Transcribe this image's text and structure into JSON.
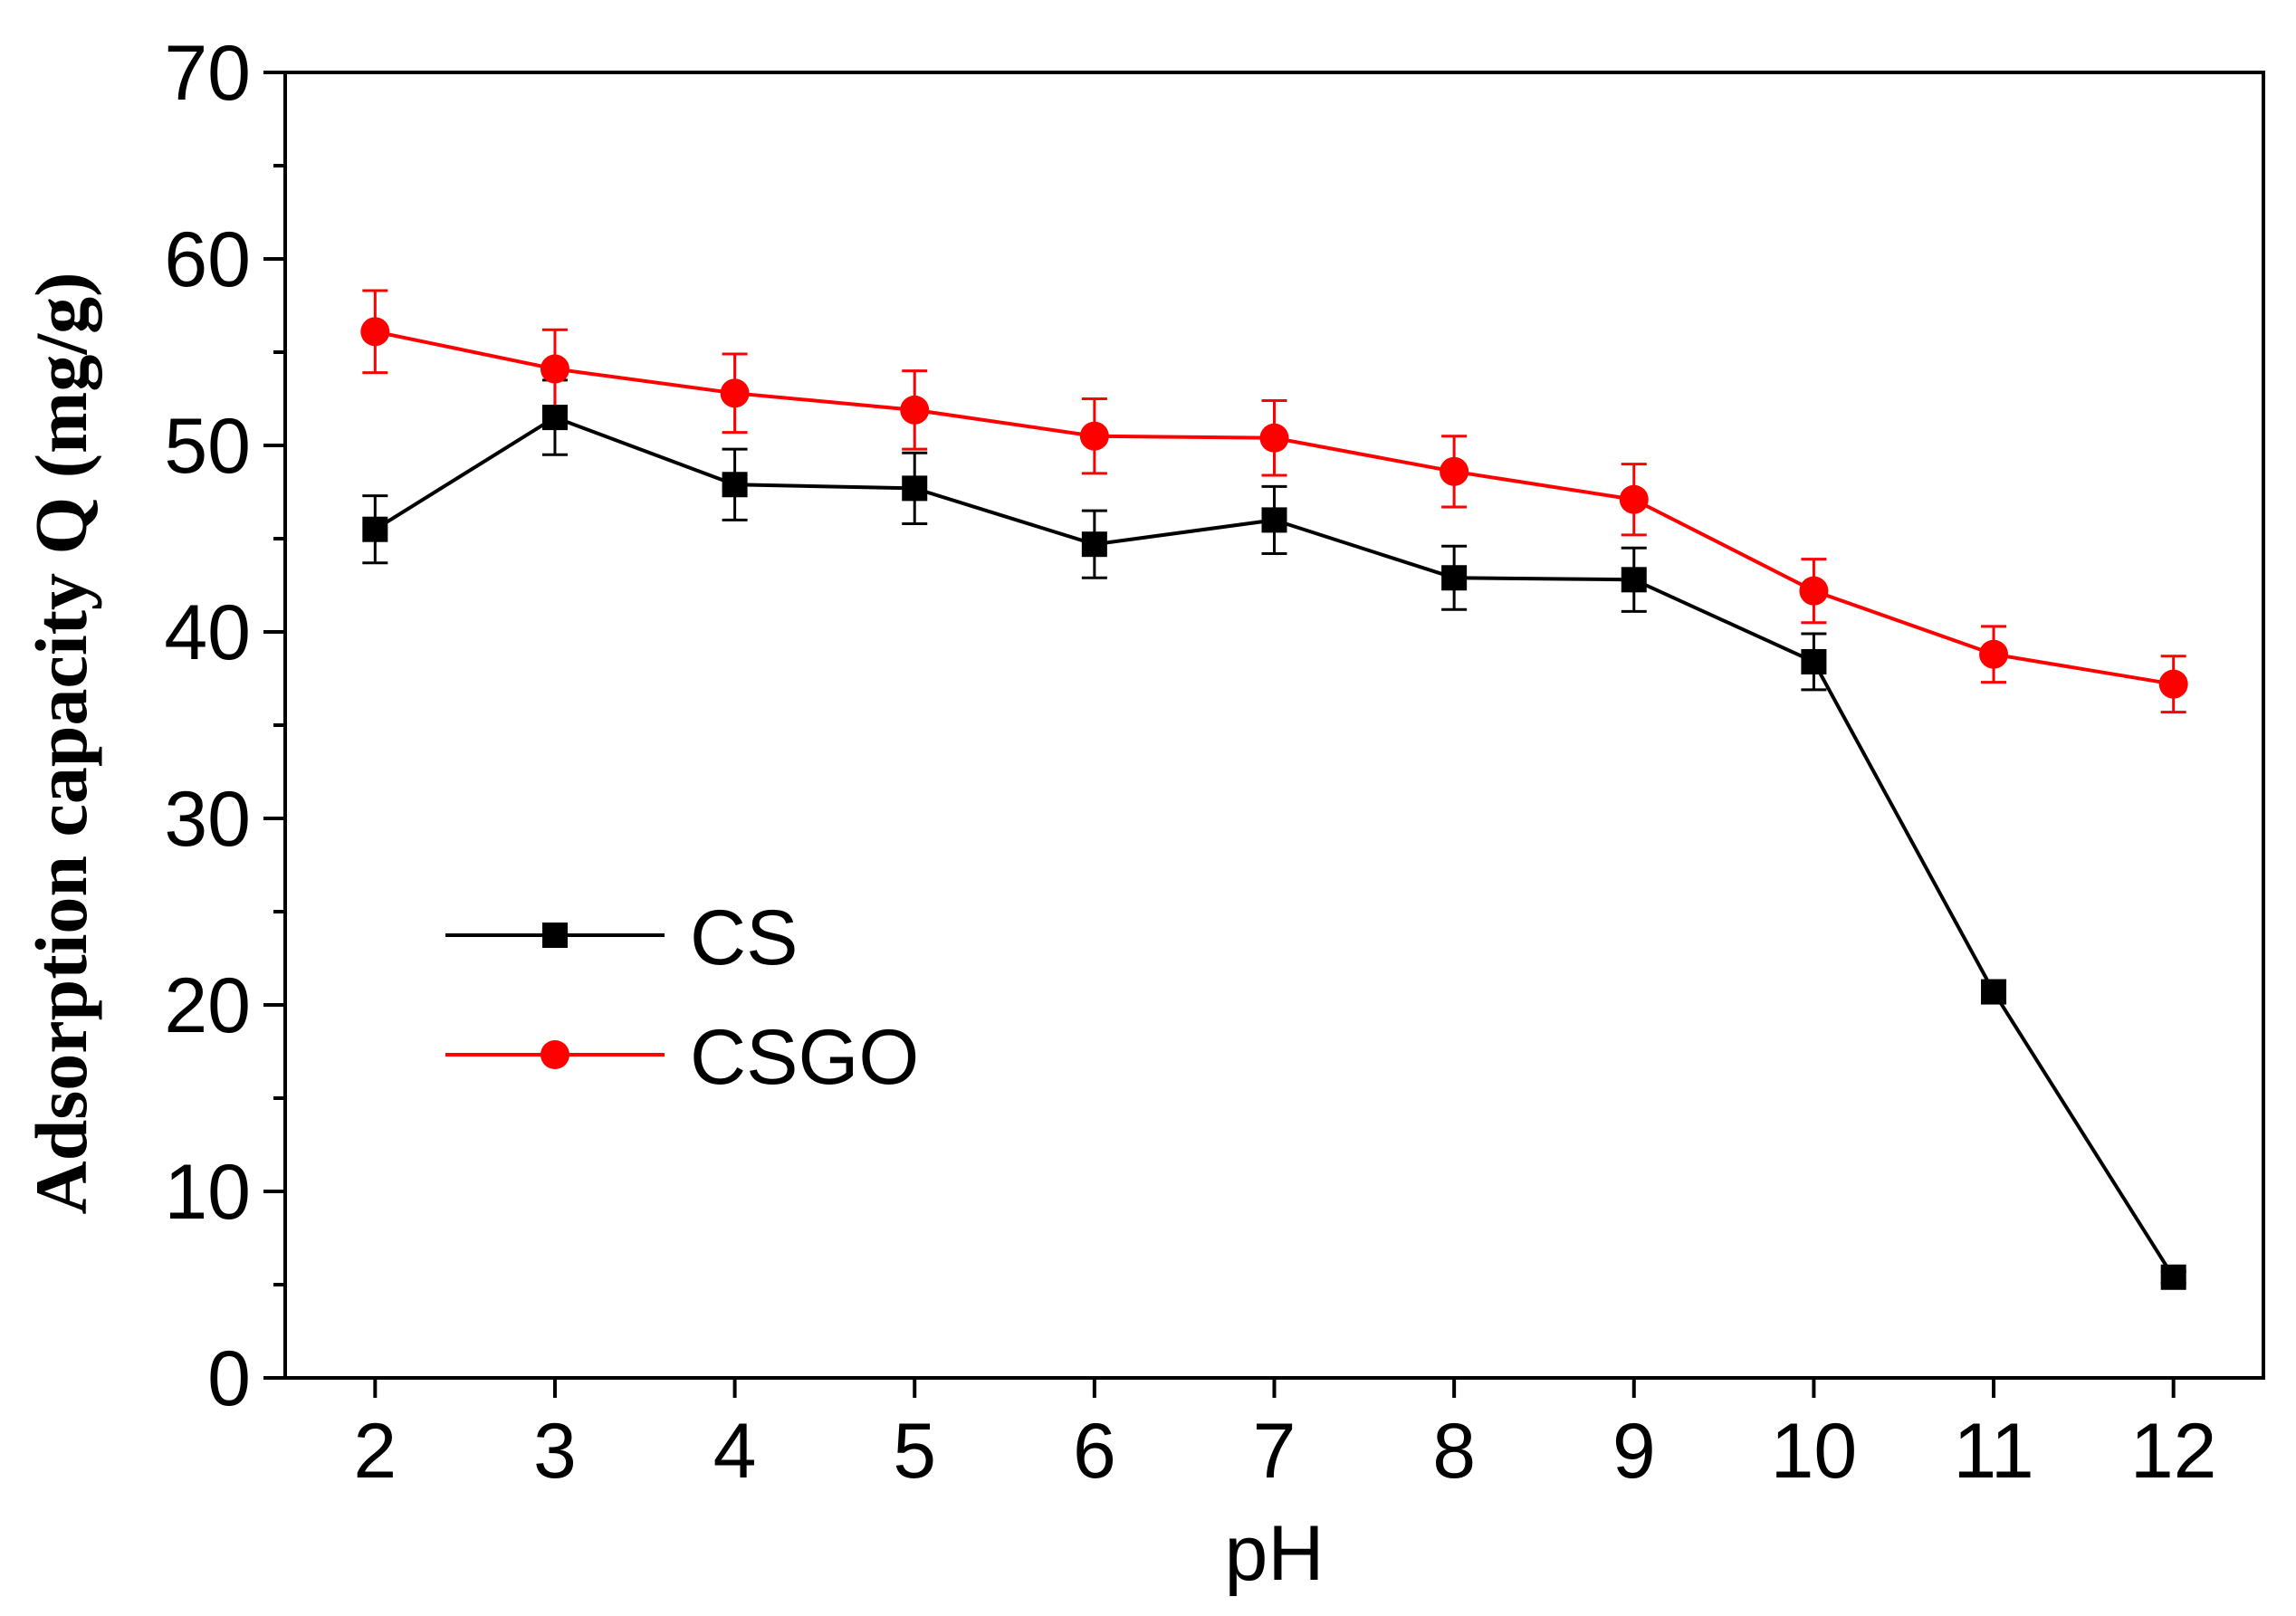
{
  "chart_data": {
    "type": "line",
    "title": "",
    "xlabel": "pH",
    "ylabel": "Adsorption capacity Q (mg/g)",
    "x": [
      2,
      3,
      4,
      5,
      6,
      7,
      8,
      9,
      10,
      11,
      12
    ],
    "xlim": [
      1.5,
      12.5
    ],
    "ylim": [
      0,
      70
    ],
    "xticks": [
      "2",
      "3",
      "4",
      "5",
      "6",
      "7",
      "8",
      "9",
      "10",
      "11",
      "12"
    ],
    "yticks": [
      "0",
      "10",
      "20",
      "30",
      "40",
      "50",
      "60",
      "70"
    ],
    "grid": false,
    "legend_position": "left-bottom",
    "series": [
      {
        "name": "CS",
        "color": "#000000",
        "marker": "square",
        "values": [
          45.5,
          51.5,
          47.9,
          47.7,
          44.7,
          46.0,
          42.9,
          42.8,
          38.4,
          20.7,
          5.4
        ],
        "errors": [
          1.8,
          2.0,
          1.9,
          1.9,
          1.8,
          1.8,
          1.7,
          1.7,
          1.5,
          0.6,
          0.3
        ]
      },
      {
        "name": "CSGO",
        "color": "#ff0000",
        "marker": "circle",
        "values": [
          56.1,
          54.1,
          52.8,
          51.9,
          50.5,
          50.4,
          48.6,
          47.1,
          42.2,
          38.8,
          37.2
        ],
        "errors": [
          2.2,
          2.1,
          2.1,
          2.1,
          2.0,
          2.0,
          1.9,
          1.9,
          1.7,
          1.5,
          1.5
        ]
      }
    ]
  }
}
